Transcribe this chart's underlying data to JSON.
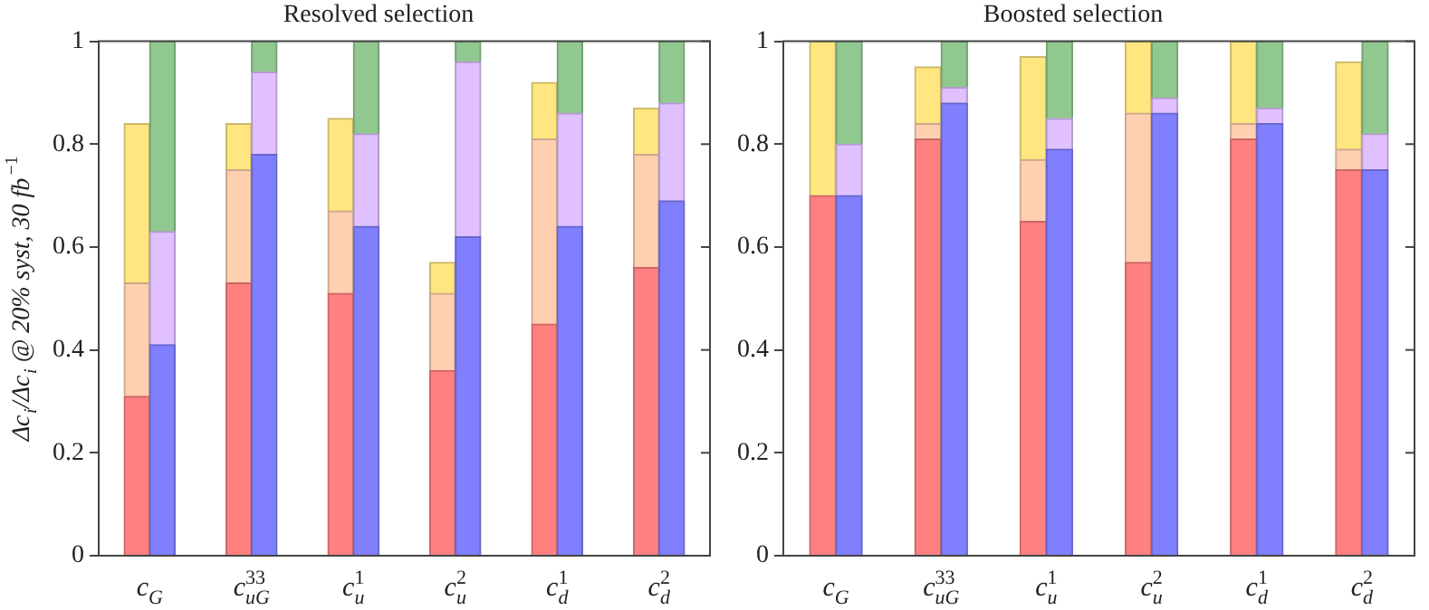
{
  "chart_data": [
    {
      "type": "bar",
      "title": "Resolved selection",
      "ylabel": "Δc$_{i}$/Δc$_{i}$ @ 20% syst, 30 fb$^{−1}$",
      "stacked": true,
      "categories": [
        null,
        "c$_{G}$",
        null,
        null,
        null,
        "c$_{uG}$$^{33}$",
        null,
        null,
        null,
        "c$_{u}$$^{1}$",
        null,
        null,
        null,
        "c$_{u}$$^{2}$",
        null,
        null,
        null,
        "c$_{d}$$^{1}$",
        null,
        null,
        null,
        "c$_{d}$$^{2}$",
        null,
        null
      ],
      "series": [
        {
          "values": [
            null,
            0.31,
            0.41,
            null,
            null,
            0.53,
            0.78,
            null,
            null,
            0.51,
            0.64,
            null,
            null,
            0.36,
            0.62,
            null,
            null,
            0.45,
            0.64,
            null,
            null,
            0.56,
            0.69,
            null
          ],
          "colors": [
            null,
            "#ff8080",
            "#8080ff",
            null,
            null,
            "#ff8080",
            "#8080ff",
            null,
            null,
            "#ff8080",
            "#8080ff",
            null,
            null,
            "#ff8080",
            "#8080ff",
            null,
            null,
            "#ff8080",
            "#8080ff",
            null,
            null,
            "#ff8080",
            "#8080ff",
            null
          ]
        },
        {
          "values": [
            null,
            0.22,
            0.22,
            null,
            null,
            0.22,
            0.16,
            null,
            null,
            0.16,
            0.18,
            null,
            null,
            0.15,
            0.34,
            null,
            null,
            0.36,
            0.22,
            null,
            null,
            0.22,
            0.19,
            null
          ],
          "colors": [
            null,
            "#ffd0b0",
            "#e0c0ff",
            null,
            null,
            "#ffd0b0",
            "#e0c0ff",
            null,
            null,
            "#ffd0b0",
            "#e0c0ff",
            null,
            null,
            "#ffd0b0",
            "#e0c0ff",
            null,
            null,
            "#ffd0b0",
            "#e0c0ff",
            null,
            null,
            "#ffd0b0",
            "#e0c0ff",
            null
          ]
        },
        {
          "values": [
            null,
            0.31,
            0.37,
            null,
            null,
            0.09,
            0.06,
            null,
            null,
            0.18,
            0.18,
            null,
            null,
            0.06,
            0.04,
            null,
            null,
            0.11,
            0.14,
            null,
            null,
            0.09,
            0.12,
            null
          ],
          "colors": [
            null,
            "#ffe680",
            "#90c890",
            null,
            null,
            "#ffe680",
            "#90c890",
            null,
            null,
            "#ffe680",
            "#90c890",
            null,
            null,
            "#ffe680",
            "#90c890",
            null,
            null,
            "#ffe680",
            "#90c890",
            null,
            null,
            "#ffe680",
            "#90c890",
            null
          ]
        }
      ],
      "ylim": [
        0,
        1
      ],
      "yticks": [
        0,
        0.2,
        0.4,
        0.6,
        0.8,
        1
      ],
      "grid": false,
      "legend": false
    },
    {
      "type": "bar",
      "title": "Boosted selection",
      "stacked": true,
      "categories": [
        null,
        "c$_{G}$",
        null,
        null,
        null,
        "c$_{uG}$$^{33}$",
        null,
        null,
        null,
        "c$_{u}$$^{1}$",
        null,
        null,
        null,
        "c$_{u}$$^{2}$",
        null,
        null,
        null,
        "c$_{d}$$^{1}$",
        null,
        null,
        null,
        "c$_{d}$$^{2}$",
        null,
        null
      ],
      "series": [
        {
          "values": [
            null,
            0.7,
            0.7,
            null,
            null,
            0.81,
            0.88,
            null,
            null,
            0.65,
            0.79,
            null,
            null,
            0.57,
            0.86,
            null,
            null,
            0.81,
            0.84,
            null,
            null,
            0.75,
            0.75,
            null
          ],
          "colors": [
            null,
            "#ff8080",
            "#8080ff",
            null,
            null,
            "#ff8080",
            "#8080ff",
            null,
            null,
            "#ff8080",
            "#8080ff",
            null,
            null,
            "#ff8080",
            "#8080ff",
            null,
            null,
            "#ff8080",
            "#8080ff",
            null,
            null,
            "#ff8080",
            "#8080ff",
            null
          ]
        },
        {
          "values": [
            null,
            0,
            0.1,
            null,
            null,
            0.03,
            0.03,
            null,
            null,
            0.12,
            0.06,
            null,
            null,
            0.29,
            0.03,
            null,
            null,
            0.03,
            0.03,
            null,
            null,
            0.04,
            0.07,
            null
          ],
          "colors": [
            null,
            "#ffd0b0",
            "#e0c0ff",
            null,
            null,
            "#ffd0b0",
            "#e0c0ff",
            null,
            null,
            "#ffd0b0",
            "#e0c0ff",
            null,
            null,
            "#ffd0b0",
            "#e0c0ff",
            null,
            null,
            "#ffd0b0",
            "#e0c0ff",
            null,
            null,
            "#ffd0b0",
            "#e0c0ff",
            null
          ]
        },
        {
          "values": [
            null,
            0.3,
            0.2,
            null,
            null,
            0.11,
            0.09,
            null,
            null,
            0.2,
            0.15,
            null,
            null,
            0.14,
            0.11,
            null,
            null,
            0.16,
            0.13,
            null,
            null,
            0.17,
            0.18,
            null
          ],
          "colors": [
            null,
            "#ffe680",
            "#90c890",
            null,
            null,
            "#ffe680",
            "#90c890",
            null,
            null,
            "#ffe680",
            "#90c890",
            null,
            null,
            "#ffe680",
            "#90c890",
            null,
            null,
            "#ffe680",
            "#90c890",
            null,
            null,
            "#ffe680",
            "#90c890",
            null
          ]
        }
      ],
      "ylim": [
        0,
        1
      ],
      "yticks": [
        0,
        0.2,
        0.4,
        0.6,
        0.8,
        1
      ],
      "grid": false,
      "legend": false
    }
  ]
}
